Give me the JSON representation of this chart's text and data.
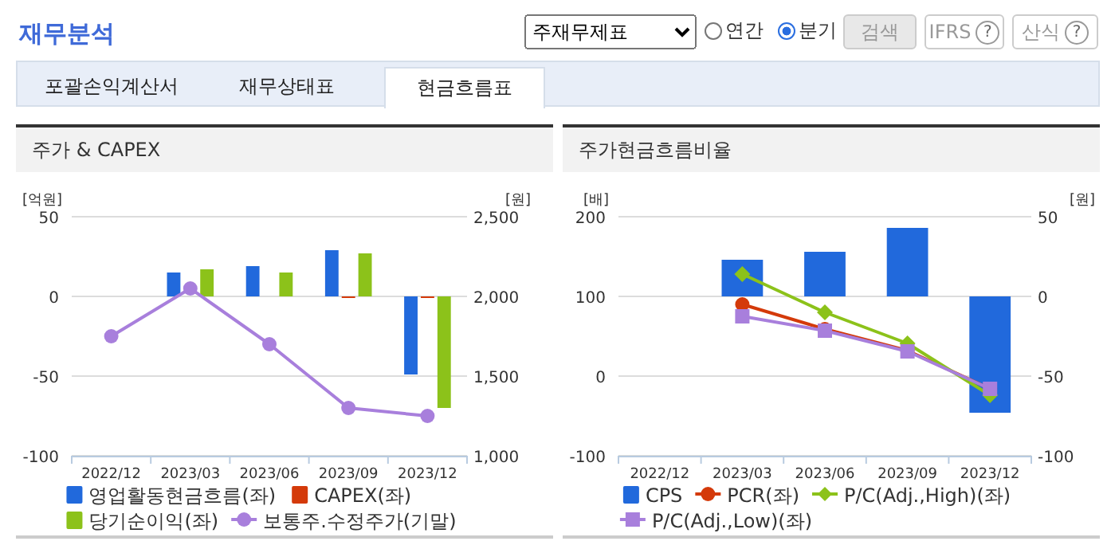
{
  "chart_data": [
    {
      "type": "other",
      "title": "재무분석",
      "annotations": [
        "주재무제표",
        "연간",
        "분기",
        "검색",
        "IFRS",
        "산식",
        "포괄손익계산서",
        "재무상태표",
        "현금흐름표",
        "?",
        "?"
      ]
    },
    {
      "type": "bar",
      "title": "주가 & CAPEX",
      "ylabel": "[억원]",
      "y2label": "[원]",
      "categories": [
        "2022/12",
        "2023/03",
        "2023/06",
        "2023/09",
        "2023/12"
      ],
      "ylim": [
        -100,
        50
      ],
      "yticks": [
        -100,
        -50,
        0,
        50
      ],
      "y2lim": [
        1000,
        2500
      ],
      "y2ticks": [
        {
          "value": 1000,
          "label": "1,000"
        },
        {
          "value": 1500,
          "label": "1,500"
        },
        {
          "value": 2000,
          "label": "2,000"
        },
        {
          "value": 2500,
          "label": "2,500"
        }
      ],
      "grid": "y",
      "legend": "bottom",
      "series": [
        {
          "name": "영업활동현금흐름(좌)",
          "color": "#2169dc",
          "values": [
            null,
            15,
            19,
            29,
            -49
          ]
        },
        {
          "name": "CAPEX(좌)",
          "color": "#d43a0a",
          "values": [
            null,
            null,
            null,
            -1,
            -1
          ]
        },
        {
          "name": "당기순이익(좌)",
          "color": "#8cc21a",
          "values": [
            null,
            17,
            15,
            27,
            -70
          ]
        },
        {
          "name": "보통주.수정주가(기말)",
          "type": "line",
          "axis": "y2",
          "marker": "circle",
          "color": "#a87fdc",
          "values": [
            1750,
            2050,
            1700,
            1300,
            1250
          ]
        }
      ]
    },
    {
      "type": "bar",
      "title": "주가현금흐름비율",
      "ylabel": "[배]",
      "y2label": "[원]",
      "categories": [
        "2022/12",
        "2023/03",
        "2023/06",
        "2023/09",
        "2023/12"
      ],
      "ylim": [
        -100,
        200
      ],
      "yticks": [
        -100,
        0,
        100,
        200
      ],
      "y2lim": [
        -100,
        50
      ],
      "y2ticks": [
        -100,
        -50,
        0,
        50
      ],
      "grid": "y",
      "legend": "bottom",
      "series": [
        {
          "name": "CPS",
          "axis": "y2",
          "color": "#2169dc",
          "values": [
            null,
            23,
            28,
            43,
            -73
          ]
        },
        {
          "name": "PCR(좌)",
          "type": "line",
          "marker": "circle",
          "color": "#d43a0a",
          "values": [
            null,
            90,
            59,
            32,
            -16
          ]
        },
        {
          "name": "P/C(Adj.,High)(좌)",
          "type": "line",
          "marker": "diamond",
          "color": "#8cc21a",
          "values": [
            null,
            128,
            80,
            41,
            -24
          ]
        },
        {
          "name": "P/C(Adj.,Low)(좌)",
          "type": "line",
          "marker": "square",
          "color": "#a87fdc",
          "values": [
            null,
            75,
            57,
            31,
            -16
          ]
        }
      ]
    }
  ]
}
